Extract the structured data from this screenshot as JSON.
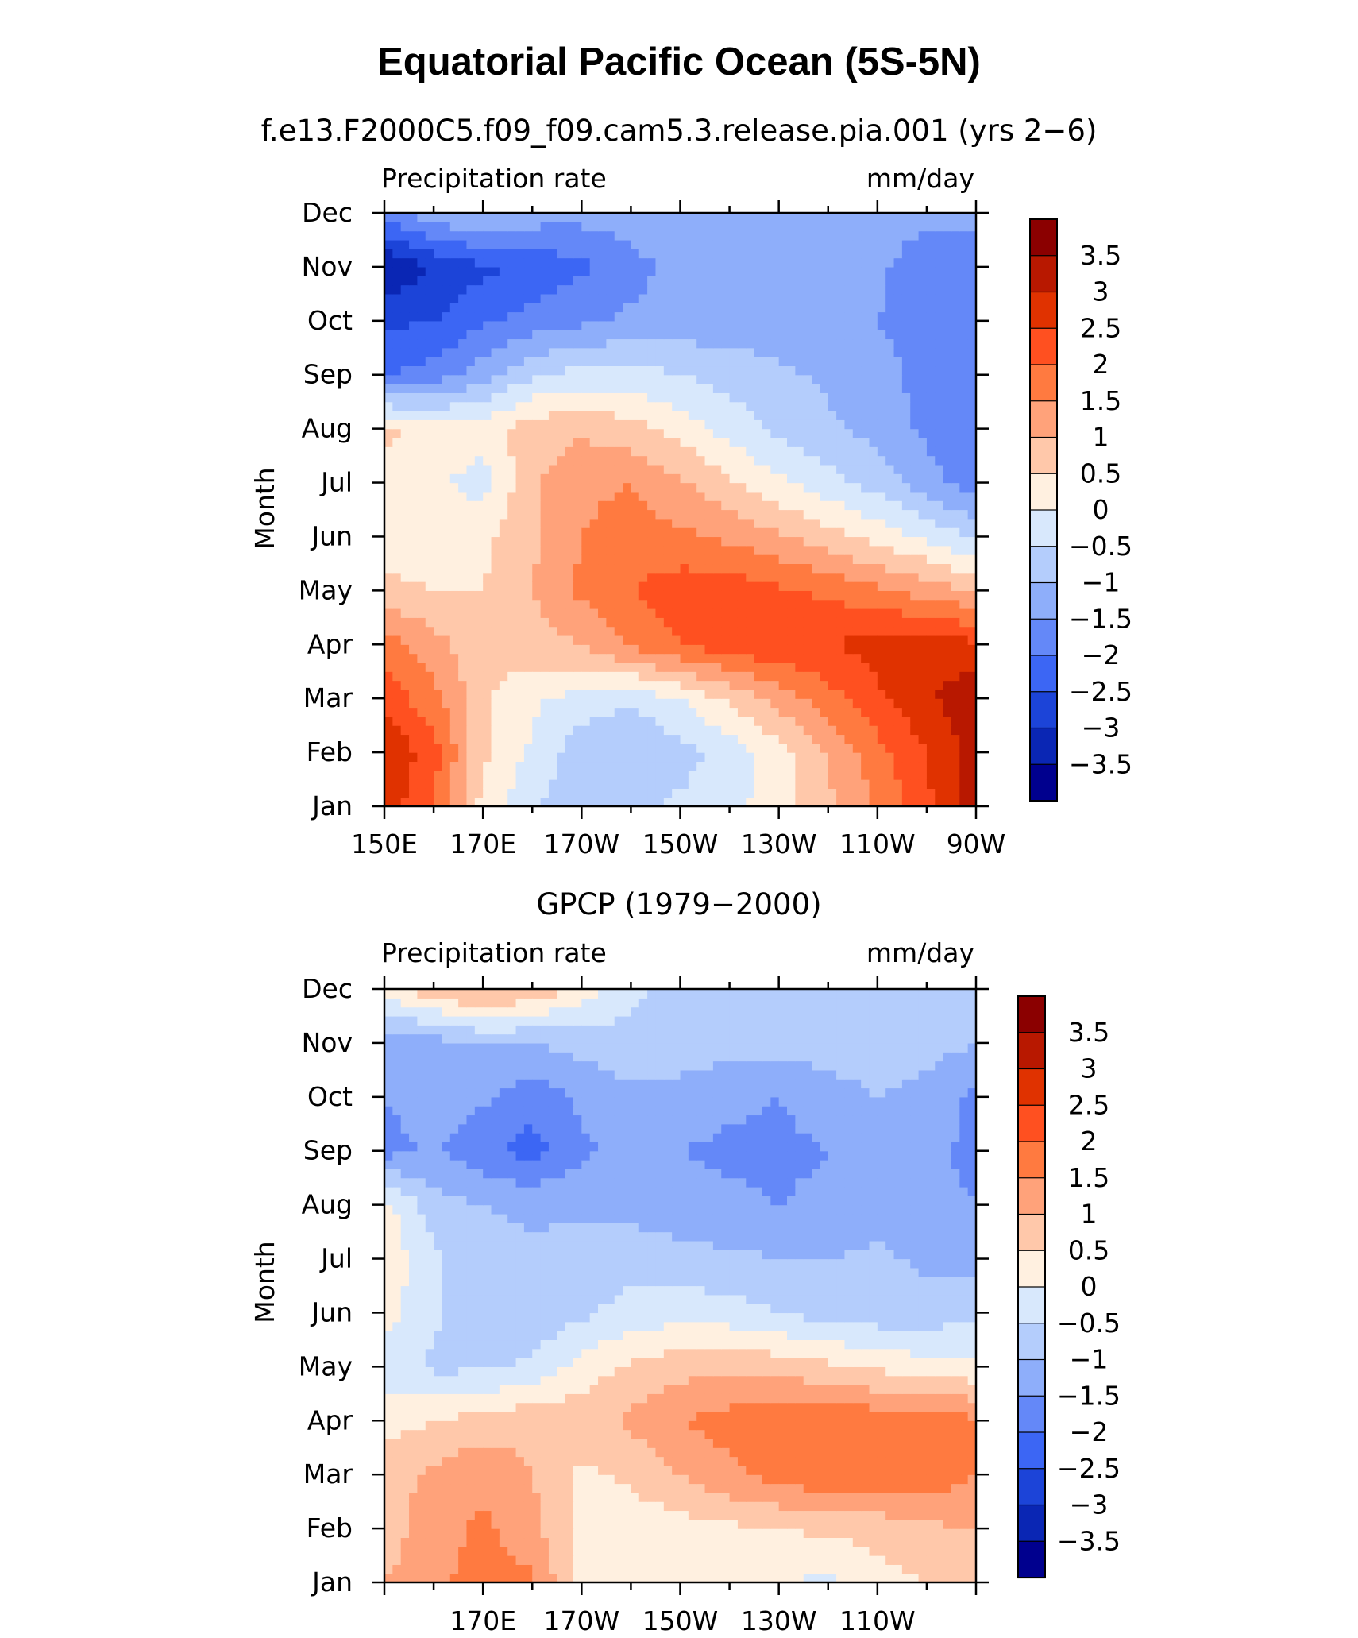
{
  "chart_title": "Equatorial Pacific Ocean (5S-5N)",
  "colorbar": {
    "levels": [
      "3.5",
      "3",
      "2.5",
      "2",
      "1.5",
      "1",
      "0.5",
      "0",
      "−0.5",
      "−1",
      "−1.5",
      "−2",
      "−2.5",
      "−3",
      "−3.5"
    ],
    "colors": [
      "#8b0000",
      "#b81800",
      "#e03200",
      "#ff5020",
      "#ff7a40",
      "#ffa27a",
      "#ffc8aa",
      "#fff0e0",
      "#d8e8fc",
      "#b4cdfc",
      "#8eaefa",
      "#6488f8",
      "#3c66f4",
      "#1c44d8",
      "#0a26b4",
      "#00008e"
    ]
  },
  "chart_data": [
    {
      "type": "heatmap",
      "title": "f.e13.F2000C5.f09_f09.cam5.3.release.pia.001 (yrs 2−6)",
      "left_label": "Precipitation rate",
      "right_label": "mm/day",
      "ylabel": "Month",
      "xlabel": "",
      "months": [
        "Jan",
        "Feb",
        "Mar",
        "Apr",
        "May",
        "Jun",
        "Jul",
        "Aug",
        "Sep",
        "Oct",
        "Nov",
        "Dec"
      ],
      "x_tick_labels": [
        "150E",
        "170E",
        "170W",
        "150W",
        "130W",
        "110W",
        "90W"
      ],
      "x_longitudes": [
        150,
        160,
        170,
        180,
        190,
        200,
        210,
        220,
        230,
        240,
        250,
        260,
        270
      ],
      "values": [
        [
          2.8,
          2.0,
          0.3,
          -0.4,
          -0.9,
          -0.6,
          -0.4,
          -0.2,
          0.3,
          0.9,
          1.6,
          2.4,
          3.2
        ],
        [
          3.0,
          2.2,
          0.6,
          -0.1,
          -0.8,
          -1.0,
          -0.7,
          -0.3,
          0.3,
          1.0,
          1.8,
          2.5,
          3.2
        ],
        [
          2.3,
          1.7,
          0.6,
          0.1,
          -0.2,
          -0.4,
          0.0,
          0.6,
          1.2,
          1.8,
          2.4,
          2.9,
          3.4
        ],
        [
          1.8,
          1.2,
          0.6,
          0.8,
          1.0,
          1.6,
          2.0,
          2.3,
          2.4,
          2.5,
          2.7,
          2.8,
          2.6
        ],
        [
          0.6,
          0.5,
          0.5,
          1.0,
          1.6,
          2.0,
          2.3,
          2.3,
          2.1,
          1.9,
          1.6,
          1.3,
          1.0
        ],
        [
          0.3,
          0.3,
          0.4,
          0.9,
          1.5,
          1.7,
          1.6,
          1.4,
          1.1,
          0.7,
          0.3,
          -0.1,
          -0.6
        ],
        [
          0.4,
          0.1,
          -0.2,
          0.9,
          1.4,
          1.5,
          1.1,
          0.6,
          0.1,
          -0.3,
          -0.7,
          -1.3,
          -1.8
        ],
        [
          0.6,
          0.3,
          0.2,
          0.8,
          0.9,
          0.7,
          0.3,
          -0.2,
          -0.6,
          -0.9,
          -1.2,
          -1.6,
          -2.0
        ],
        [
          -2.0,
          -1.8,
          -1.2,
          -0.6,
          -0.3,
          -0.3,
          -0.5,
          -0.7,
          -0.9,
          -1.1,
          -1.3,
          -1.7,
          -2.0
        ],
        [
          -2.6,
          -2.5,
          -2.1,
          -1.8,
          -1.6,
          -1.4,
          -1.3,
          -1.3,
          -1.3,
          -1.3,
          -1.5,
          -1.7,
          -2.0
        ],
        [
          -3.5,
          -3.0,
          -2.6,
          -2.4,
          -2.1,
          -1.7,
          -1.3,
          -1.2,
          -1.3,
          -1.4,
          -1.4,
          -1.8,
          -1.9
        ],
        [
          -1.8,
          -1.1,
          -0.9,
          -1.2,
          -1.3,
          -1.2,
          -1.1,
          -1.1,
          -1.1,
          -1.1,
          -1.2,
          -1.4,
          -1.3
        ]
      ],
      "zlim": [
        -4,
        4
      ],
      "contour_interval": 0.5
    },
    {
      "type": "heatmap",
      "title": "GPCP (1979−2000)",
      "left_label": "Precipitation rate",
      "right_label": "mm/day",
      "ylabel": "Month",
      "xlabel": "",
      "months": [
        "Jan",
        "Feb",
        "Mar",
        "Apr",
        "May",
        "Jun",
        "Jul",
        "Aug",
        "Sep",
        "Oct",
        "Nov",
        "Dec"
      ],
      "x_tick_labels": [
        "170E",
        "170W",
        "150W",
        "130W",
        "110W"
      ],
      "x_longitudes": [
        150,
        160,
        170,
        180,
        190,
        200,
        210,
        220,
        230,
        240,
        250,
        260,
        270
      ],
      "values": [
        [
          1.0,
          1.4,
          1.7,
          1.6,
          0.3,
          0.1,
          0.2,
          0.1,
          0.0,
          -0.1,
          0.3,
          0.5,
          0.8
        ],
        [
          0.7,
          1.3,
          1.6,
          1.2,
          0.3,
          0.2,
          0.3,
          0.4,
          0.5,
          0.6,
          0.7,
          0.9,
          1.0
        ],
        [
          0.8,
          1.1,
          1.4,
          1.0,
          0.4,
          0.6,
          1.0,
          1.4,
          1.7,
          1.9,
          1.8,
          1.9,
          1.5
        ],
        [
          0.3,
          0.5,
          0.7,
          0.9,
          0.8,
          1.1,
          1.5,
          1.7,
          1.8,
          2.0,
          1.8,
          1.9,
          1.6
        ],
        [
          -0.2,
          -0.6,
          -0.6,
          -0.4,
          0.2,
          0.6,
          0.8,
          0.9,
          0.8,
          0.6,
          0.4,
          0.2,
          0.1
        ],
        [
          0.2,
          -0.4,
          -0.8,
          -0.9,
          -0.6,
          -0.3,
          -0.2,
          -0.3,
          -0.5,
          -0.7,
          -0.8,
          -0.8,
          -0.6
        ],
        [
          0.4,
          -0.4,
          -0.8,
          -0.9,
          -0.8,
          -0.7,
          -0.8,
          -0.9,
          -1.0,
          -1.0,
          -0.9,
          -1.1,
          -1.2
        ],
        [
          0.2,
          -0.8,
          -1.0,
          -1.1,
          -1.1,
          -1.2,
          -1.3,
          -1.4,
          -1.5,
          -1.4,
          -1.2,
          -1.4,
          -1.5
        ],
        [
          -1.7,
          -1.4,
          -1.9,
          -2.2,
          -1.6,
          -1.3,
          -1.5,
          -1.6,
          -1.6,
          -1.5,
          -1.3,
          -1.4,
          -1.6
        ],
        [
          -1.5,
          -1.2,
          -1.4,
          -1.8,
          -1.4,
          -1.1,
          -1.2,
          -1.4,
          -1.5,
          -1.3,
          -1.0,
          -1.2,
          -1.6
        ],
        [
          -1.4,
          -1.2,
          -1.0,
          -1.0,
          -0.8,
          -0.7,
          -0.7,
          -0.8,
          -0.8,
          -0.7,
          -0.6,
          -0.8,
          -1.0
        ],
        [
          0.3,
          0.8,
          1.2,
          0.9,
          0.3,
          -0.4,
          -0.6,
          -0.7,
          -0.8,
          -0.7,
          -0.7,
          -0.8,
          -0.9
        ]
      ],
      "zlim": [
        -4,
        4
      ],
      "contour_interval": 0.5
    }
  ]
}
